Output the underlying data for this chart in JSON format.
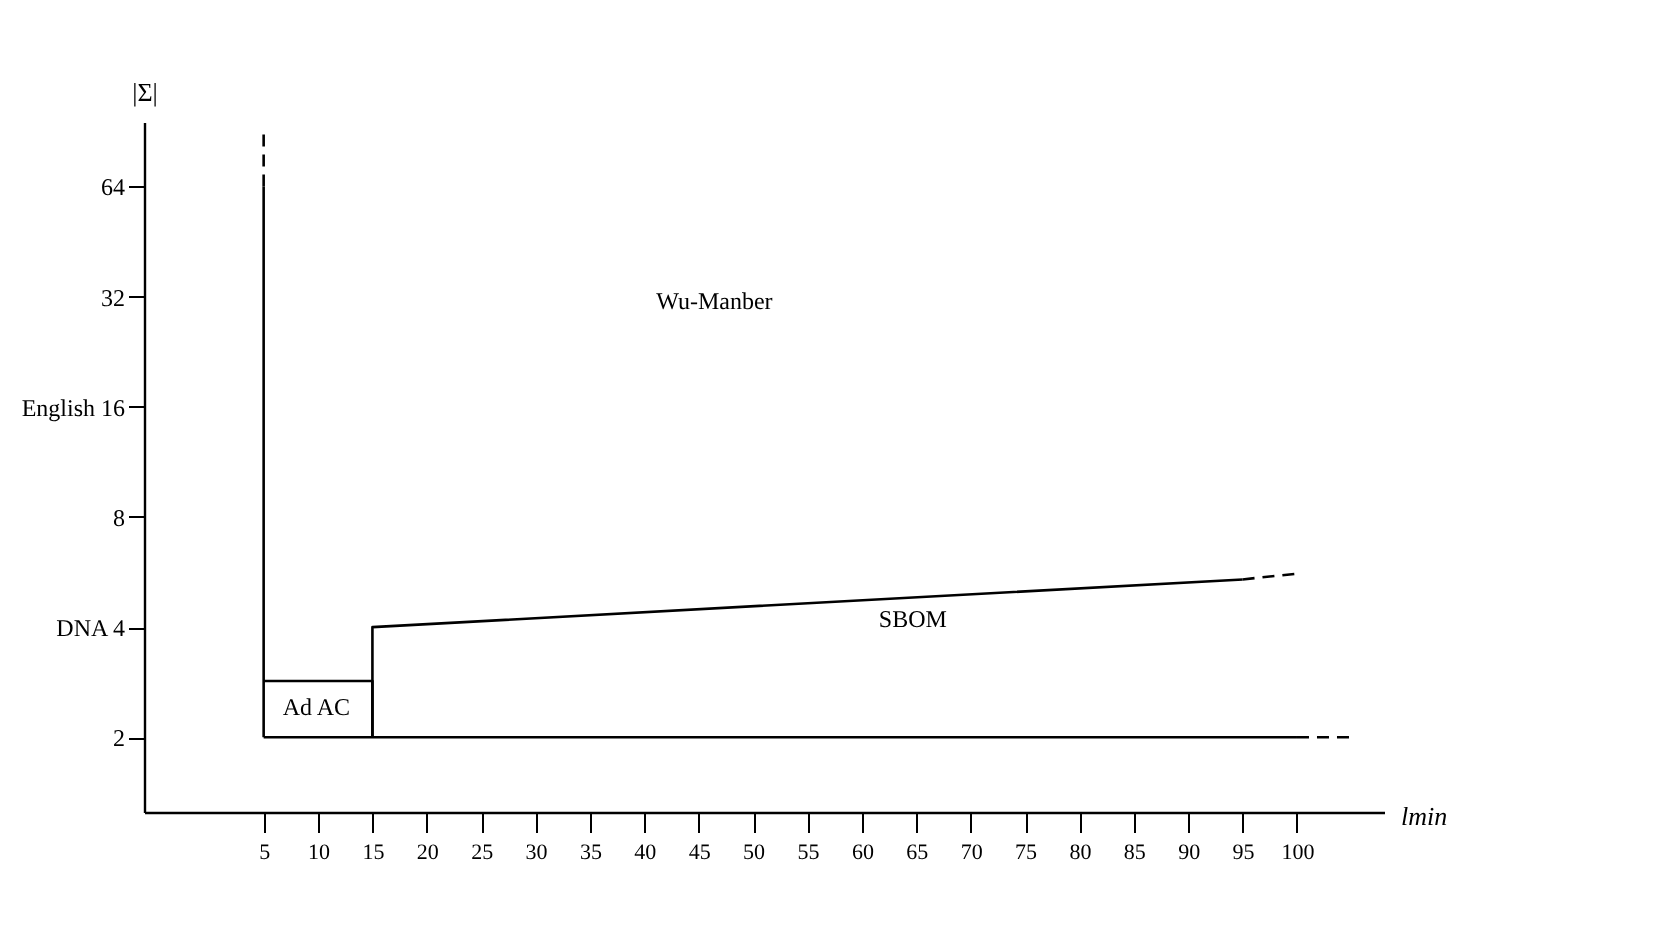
{
  "chart_data": {
    "type": "line",
    "xlabel": "lmin",
    "ylabel": "|Σ|",
    "log": "y",
    "xlim": [
      -6,
      108
    ],
    "ylim": [
      1.25,
      96
    ],
    "xticks": [
      5,
      10,
      15,
      20,
      25,
      30,
      35,
      40,
      45,
      50,
      55,
      60,
      65,
      70,
      75,
      80,
      85,
      90,
      95,
      100
    ],
    "yticks": [
      2,
      {
        "value": 4,
        "label": "DNA 4"
      },
      8,
      {
        "value": 16,
        "label": "English 16"
      },
      32,
      64
    ],
    "grid": false,
    "marker": "none",
    "series": [
      {
        "color": "#000000",
        "line_style": "solid",
        "x": [
          5,
          5
        ],
        "values": [
          2,
          64
        ]
      },
      {
        "color": "#000000",
        "line_style": "dashed",
        "x": [
          5,
          5
        ],
        "values": [
          64,
          90
        ]
      },
      {
        "color": "#000000",
        "line_style": "solid",
        "x": [
          5,
          100
        ],
        "values": [
          2,
          2
        ]
      },
      {
        "color": "#000000",
        "line_style": "dashed",
        "x": [
          100,
          105
        ],
        "values": [
          2,
          2
        ]
      },
      {
        "color": "#000000",
        "line_style": "solid",
        "x": [
          5,
          15,
          15
        ],
        "values": [
          2.85,
          2.85,
          2
        ]
      },
      {
        "color": "#000000",
        "line_style": "solid",
        "x": [
          15,
          15,
          95
        ],
        "values": [
          2,
          4,
          5.4
        ]
      },
      {
        "color": "#000000",
        "line_style": "dashed",
        "x": [
          95,
          100
        ],
        "values": [
          5.4,
          5.6
        ]
      }
    ],
    "annotations": [
      "Wu-Manber",
      "SBOM",
      "Ad AC"
    ]
  }
}
